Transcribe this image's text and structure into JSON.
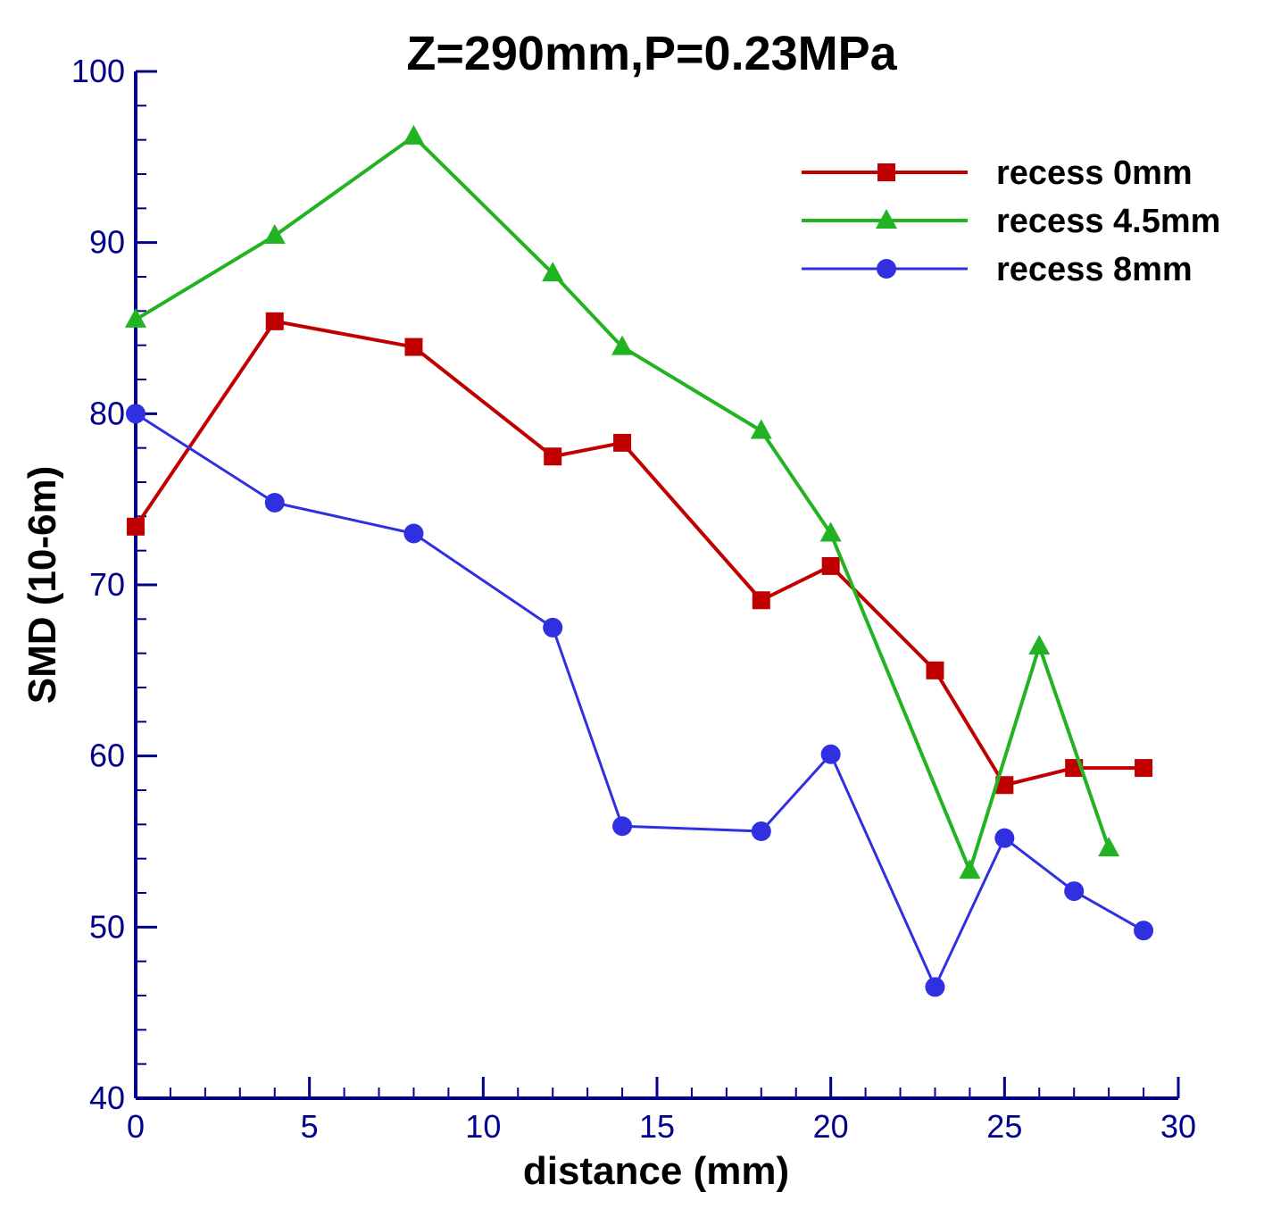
{
  "chart_data": {
    "type": "line",
    "title": "Z=290mm,P=0.23MPa",
    "xlabel": "distance (mm)",
    "ylabel": "SMD (10-6m)",
    "xlim": [
      0,
      30
    ],
    "ylim": [
      40,
      100
    ],
    "x_ticks": [
      0,
      5,
      10,
      15,
      20,
      25,
      30
    ],
    "y_ticks": [
      40,
      50,
      60,
      70,
      80,
      90,
      100
    ],
    "x_minor_step": 1,
    "y_minor_step": 2,
    "legend_position": "top-right",
    "axis_color": "#00008b",
    "series": [
      {
        "name": "recess 0mm",
        "color": "#c00000",
        "marker": "square",
        "x": [
          0,
          4,
          8,
          12,
          14,
          18,
          20,
          23,
          25,
          27,
          29
        ],
        "y": [
          73.4,
          85.4,
          83.9,
          77.5,
          78.3,
          69.1,
          71.1,
          65.0,
          58.3,
          59.3,
          59.3
        ]
      },
      {
        "name": "recess 4.5mm",
        "color": "#22b322",
        "marker": "triangle",
        "x": [
          0,
          4,
          8,
          12,
          14,
          18,
          20,
          24,
          26,
          28
        ],
        "y": [
          85.5,
          90.4,
          96.2,
          88.2,
          83.9,
          79.0,
          73.0,
          53.3,
          66.4,
          54.6
        ]
      },
      {
        "name": "recess 8mm",
        "color": "#3030e0",
        "marker": "circle",
        "x": [
          0,
          4,
          8,
          12,
          14,
          18,
          20,
          23,
          25,
          27,
          29
        ],
        "y": [
          80.0,
          74.8,
          73.0,
          67.5,
          55.9,
          55.6,
          60.1,
          46.5,
          55.2,
          52.1,
          49.8
        ]
      }
    ]
  }
}
